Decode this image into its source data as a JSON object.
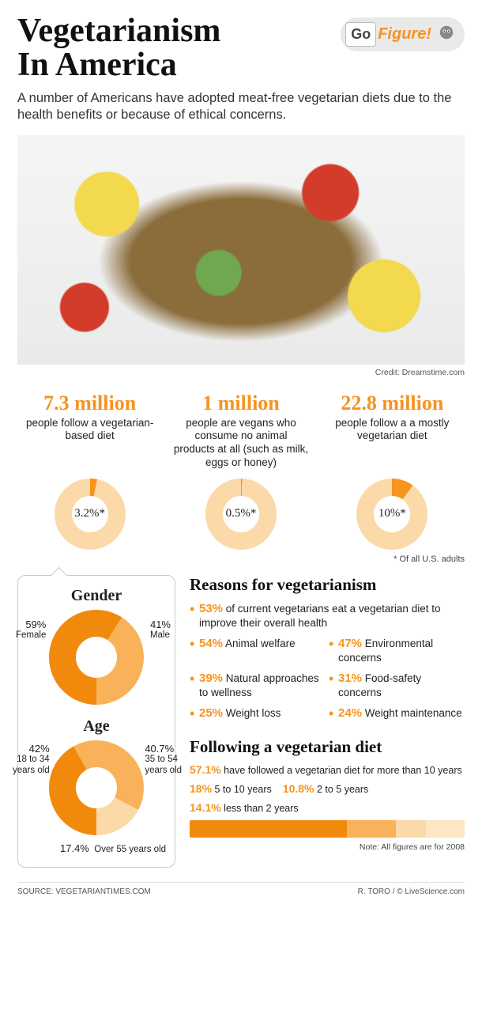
{
  "header": {
    "title_line1": "Vegetarianism",
    "title_line2": "In America",
    "badge_go": "Go",
    "badge_figure": "Figure!",
    "subtitle": "A number of Americans have adopted meat-free vegetarian diets due to the health benefits or because of ethical concerns."
  },
  "hero": {
    "credit": "Credit: Dreamstime.com"
  },
  "colors": {
    "accent": "#f7931e",
    "accent_light": "#fcd9a8",
    "accent_mid": "#f9b25a",
    "accent_pale": "#fde6c4",
    "ring_bg": "#fcd9a8",
    "gender_dark": "#f18a0c",
    "gender_light": "#f9b25a",
    "age_c1": "#f18a0c",
    "age_c2": "#f9b25a",
    "age_c3": "#fcd9a8"
  },
  "stats": [
    {
      "num": "7.3 million",
      "desc": "people follow a vegetarian-based diet",
      "pct_label": "3.2%*",
      "pct": 3.2
    },
    {
      "num": "1 million",
      "desc": "people are vegans who consume no animal products at all (such as milk, eggs or honey)",
      "pct_label": "0.5%*",
      "pct": 0.5
    },
    {
      "num": "22.8 million",
      "desc": "people follow a a mostly vegetarian diet",
      "pct_label": "10%*",
      "pct": 10
    }
  ],
  "stats_footnote": "* Of all U.S. adults",
  "gender": {
    "title": "Gender",
    "female_pct": 59,
    "female_label": "59%\nFemale",
    "male_pct": 41,
    "male_label": "41%\nMale"
  },
  "age": {
    "title": "Age",
    "segments": [
      {
        "pct": 42.0,
        "label": "42%\n18 to 34\nyears old"
      },
      {
        "pct": 40.7,
        "label": "40.7%\n35 to 54\nyears old"
      },
      {
        "pct": 17.4,
        "label": "17.4%  Over 55 years old"
      }
    ]
  },
  "reasons": {
    "title": "Reasons for vegetarianism",
    "lead": {
      "pct": "53%",
      "text": "of current vegetarians eat a vegetarian diet to improve their overall health"
    },
    "items": [
      {
        "pct": "54%",
        "text": "Animal welfare"
      },
      {
        "pct": "47%",
        "text": "Environmental concerns"
      },
      {
        "pct": "39%",
        "text": "Natural approaches to wellness"
      },
      {
        "pct": "31%",
        "text": "Food-safety concerns"
      },
      {
        "pct": "25%",
        "text": "Weight loss"
      },
      {
        "pct": "24%",
        "text": "Weight maintenance"
      }
    ]
  },
  "following": {
    "title": "Following a vegetarian diet",
    "durations": [
      {
        "pct": "57.1%",
        "label": "have followed a vegetarian diet for more than 10 years",
        "width": 57.1,
        "color": "#f18a0c"
      },
      {
        "pct": "18%",
        "label": "5 to 10 years",
        "width": 18,
        "color": "#f9b25a"
      },
      {
        "pct": "10.8%",
        "label": "2 to 5 years",
        "width": 10.8,
        "color": "#fcd9a8"
      },
      {
        "pct": "14.1%",
        "label": "less than 2 years",
        "width": 14.1,
        "color": "#fde6c4"
      }
    ],
    "note": "Note: All figures are for 2008"
  },
  "footer": {
    "source": "SOURCE: VEGETARIANTIMES.COM",
    "credit": "R. TORO / © LiveScience.com"
  }
}
